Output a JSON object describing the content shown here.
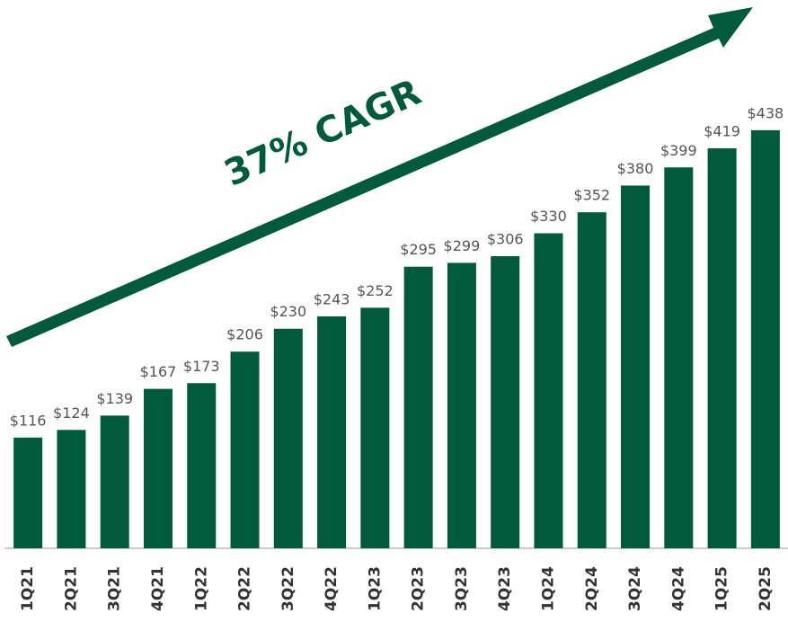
{
  "chart_data": {
    "type": "bar",
    "annotation": "37% CAGR",
    "categories": [
      "1Q21",
      "2Q21",
      "3Q21",
      "4Q21",
      "1Q22",
      "2Q22",
      "3Q22",
      "4Q22",
      "1Q23",
      "2Q23",
      "3Q23",
      "4Q23",
      "1Q24",
      "2Q24",
      "3Q24",
      "4Q24",
      "1Q25",
      "2Q25"
    ],
    "values": [
      116,
      124,
      139,
      167,
      173,
      206,
      230,
      243,
      252,
      295,
      299,
      306,
      330,
      352,
      380,
      399,
      419,
      438
    ],
    "value_labels": [
      "$116",
      "$124",
      "$139",
      "$167",
      "$173",
      "$206",
      "$230",
      "$243",
      "$252",
      "$295",
      "$299",
      "$306",
      "$330",
      "$352",
      "$380",
      "$399",
      "$419",
      "$438"
    ],
    "color": "#005a3c",
    "ylim": [
      0,
      500
    ]
  }
}
